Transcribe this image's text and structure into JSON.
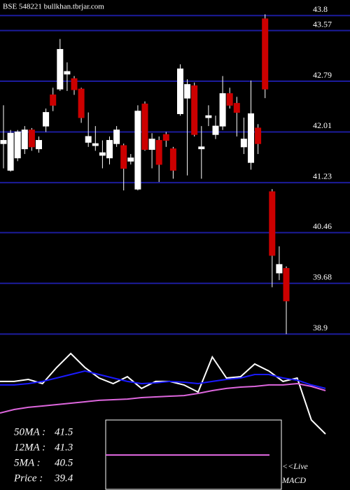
{
  "chart_data": [
    {
      "type": "candlestick",
      "title": "BSE 548221 bullkhan.tbrjar.com",
      "open": [
        41.83,
        41.42,
        41.61,
        41.75,
        42.04,
        41.75,
        42.1,
        42.58,
        42.67,
        42.9,
        42.83,
        42.67,
        41.85,
        41.8,
        41.65,
        41.61,
        41.83,
        41.8,
        41.56,
        41.13,
        42.44,
        41.74,
        41.88,
        41.97,
        41.75,
        42.29,
        42.53,
        42.72,
        41.75,
        42.23,
        41.97,
        42.1,
        42.6,
        42.45,
        41.78,
        41.54,
        42.07,
        43.75,
        41.09,
        39.84,
        39.91
      ],
      "high": [
        42.42,
        42.04,
        42.04,
        42.1,
        42.07,
        41.94,
        42.37,
        42.69,
        43.44,
        43.08,
        42.87,
        42.69,
        42.31,
        42.1,
        41.88,
        41.94,
        42.1,
        41.83,
        41.67,
        42.42,
        42.48,
        41.99,
        41.94,
        42.01,
        41.78,
        43.05,
        42.82,
        42.77,
        42.1,
        42.42,
        42.26,
        42.87,
        42.69,
        42.55,
        42.23,
        42.8,
        42.13,
        43.82,
        41.13,
        40.25,
        39.94
      ],
      "low": [
        41.45,
        41.4,
        41.56,
        41.67,
        41.72,
        41.69,
        42.01,
        42.33,
        42.64,
        42.64,
        42.58,
        42.15,
        41.78,
        41.72,
        41.45,
        41.51,
        41.78,
        41.11,
        41.51,
        41.11,
        41.72,
        41.45,
        41.24,
        41.78,
        41.29,
        42.26,
        41.34,
        41.94,
        41.29,
        42.1,
        41.9,
        42.04,
        42.37,
        41.94,
        41.67,
        41.43,
        41.67,
        42.53,
        39.62,
        39.73,
        38.9
      ],
      "close": [
        41.88,
        41.99,
        42.01,
        42.04,
        41.78,
        41.88,
        42.31,
        42.42,
        43.28,
        42.94,
        42.66,
        42.23,
        41.94,
        41.83,
        41.69,
        41.88,
        42.04,
        41.45,
        41.61,
        42.33,
        41.74,
        41.9,
        41.51,
        41.88,
        41.42,
        42.98,
        42.74,
        41.97,
        41.78,
        42.26,
        42.1,
        42.6,
        42.42,
        42.31,
        41.9,
        42.29,
        41.83,
        42.67,
        40.11,
        39.97,
        39.41
      ],
      "up_color": "#ffffff",
      "down_color": "#cc0000",
      "grid_color": "#1c1c9c",
      "ylim": [
        38.87,
        44.04
      ],
      "yticks": [
        43.8,
        43.57,
        42.79,
        42.01,
        41.23,
        40.46,
        39.68,
        38.9
      ],
      "grid": true
    },
    {
      "type": "line",
      "ylim": [
        0,
        100
      ],
      "series": [
        {
          "color": "#ffffff",
          "values": [
            59.3,
            59.3,
            61.5,
            57.0,
            74.1,
            88.9,
            74.1,
            63.0,
            57.0,
            64.4,
            51.9,
            59.3,
            59.3,
            55.6,
            48.1,
            85.2,
            63.0,
            64.4,
            77.8,
            70.4,
            59.3,
            63.0,
            18.5,
            3.7
          ]
        },
        {
          "color": "#1a1aff",
          "values": [
            55.6,
            55.6,
            57.0,
            59.3,
            63.0,
            66.7,
            70.4,
            66.7,
            63.0,
            59.3,
            57.0,
            57.8,
            59.3,
            58.5,
            57.0,
            59.3,
            61.5,
            63.0,
            66.7,
            66.7,
            63.0,
            60.7,
            55.6,
            51.9
          ]
        },
        {
          "color": "#dd66dd",
          "values": [
            25.9,
            29.6,
            31.9,
            33.3,
            34.8,
            36.3,
            37.8,
            39.3,
            40.0,
            40.7,
            42.2,
            43.0,
            43.7,
            44.4,
            46.7,
            49.6,
            51.9,
            53.3,
            54.1,
            55.6,
            55.6,
            57.0,
            54.1,
            49.6
          ]
        }
      ],
      "summary": [
        {
          "label": "50MA :",
          "value": 41.5
        },
        {
          "label": "12MA :",
          "value": 41.3
        },
        {
          "label": "5MA :",
          "value": 40.5
        },
        {
          "label": "Price   :",
          "value": 39.4
        }
      ],
      "live": "<<Live",
      "macd": "MACD"
    }
  ]
}
